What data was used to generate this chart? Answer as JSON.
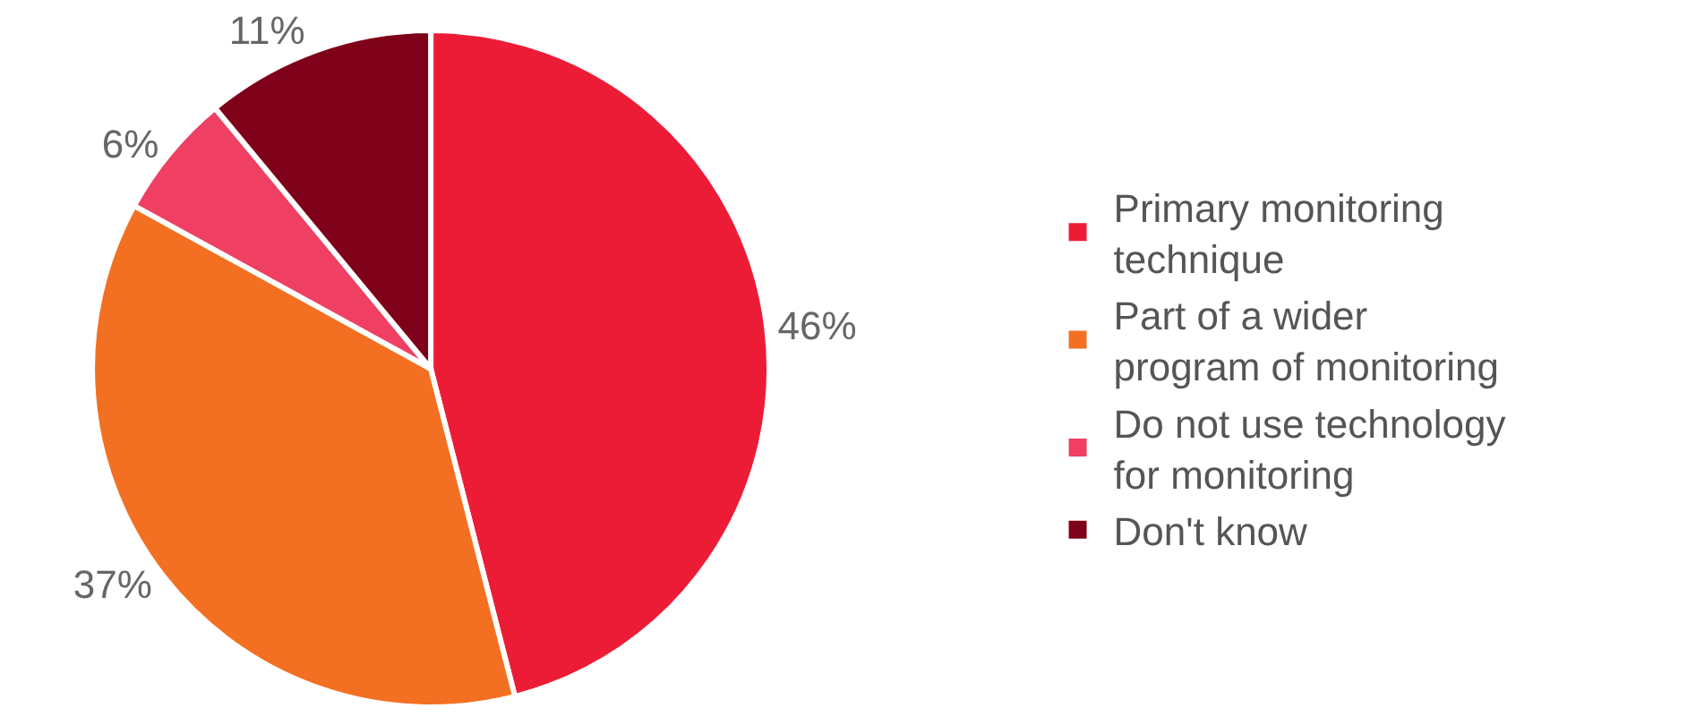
{
  "chart_data": {
    "type": "pie",
    "categories": [
      "Primary monitoring technique",
      "Part of a wider program of monitoring",
      "Do not use technology for monitoring",
      "Don't know"
    ],
    "values": [
      46,
      37,
      6,
      11
    ],
    "colors": [
      "#ed1c36",
      "#f37022",
      "#ef3f63",
      "#7f0019"
    ],
    "value_labels": [
      "46%",
      "37%",
      "6%",
      "11%"
    ],
    "legend": "right"
  }
}
